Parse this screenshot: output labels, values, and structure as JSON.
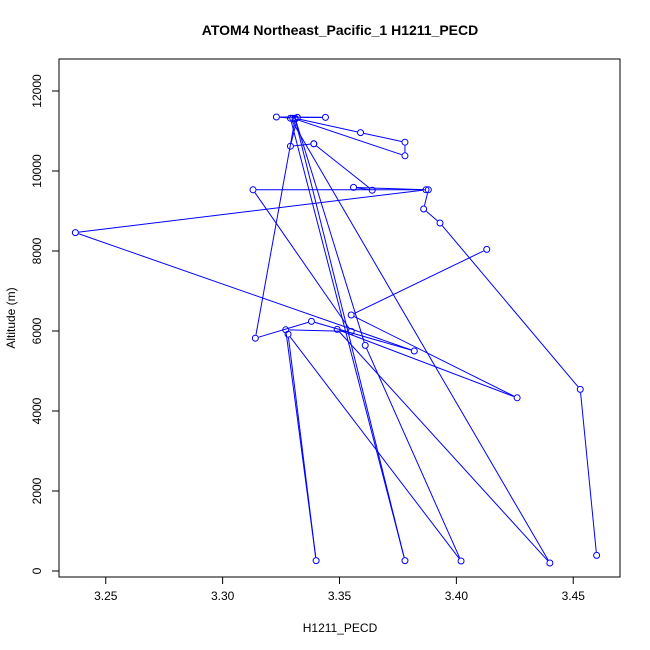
{
  "chart_data": {
    "type": "line",
    "title": "ATOM4 Northeast_Pacific_1 H1211_PECD",
    "xlabel": "H1211_PECD",
    "ylabel": "Altitude (m)",
    "xlim": [
      3.23,
      3.47
    ],
    "ylim": [
      -150,
      12800
    ],
    "xticks": [
      3.25,
      3.3,
      3.35,
      3.4,
      3.45
    ],
    "xtick_labels": [
      "3.25",
      "3.30",
      "3.35",
      "3.40",
      "3.45"
    ],
    "yticks": [
      0,
      2000,
      4000,
      6000,
      8000,
      10000,
      12000
    ],
    "ytick_labels": [
      "0",
      "2000",
      "4000",
      "6000",
      "8000",
      "10000",
      "12000"
    ],
    "series_color": "#0000ff",
    "markers": "open-circle",
    "x": [
      3.46,
      3.453,
      3.393,
      3.386,
      3.388,
      3.356,
      3.364,
      3.339,
      3.339,
      3.329,
      3.332,
      3.344,
      3.323,
      3.33,
      3.378,
      3.378,
      3.359,
      3.331,
      3.361,
      3.402,
      3.328,
      3.34,
      3.327,
      3.355,
      3.313,
      3.387,
      3.237,
      3.382,
      3.338,
      3.314,
      3.331,
      3.378,
      3.329,
      3.44,
      3.349,
      3.426,
      3.355,
      3.413
    ],
    "y": [
      390,
      4540,
      8700,
      9050,
      9530,
      9590,
      9520,
      10680,
      10680,
      10620,
      11340,
      11340,
      11350,
      11320,
      10380,
      10720,
      10960,
      11320,
      5640,
      250,
      5920,
      260,
      6030,
      5990,
      9530,
      9530,
      8460,
      5500,
      6240,
      5820,
      11300,
      260,
      11320,
      200,
      6040,
      4330,
      6400,
      8040
    ]
  }
}
